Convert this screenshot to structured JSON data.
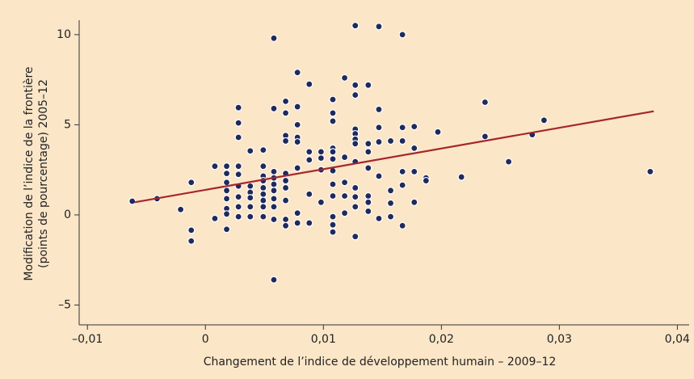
{
  "chart_data": {
    "type": "scatter",
    "xlabel": "Changement de l’indice de développement humain – 2009–12",
    "ylabel": [
      "Modification de l’indice de la frontière",
      "(points de pourcentage) 2005–12"
    ],
    "xlim": [
      -0.0107,
      0.041
    ],
    "ylim": [
      -6.1,
      10.8
    ],
    "xticks": [
      {
        "value": -0.01,
        "label": "–0,01"
      },
      0,
      {
        "value": 0.01,
        "label": "0,01"
      },
      {
        "value": 0.02,
        "label": "0,02"
      },
      {
        "value": 0.03,
        "label": "0,03"
      },
      {
        "value": 0.04,
        "label": "0,04"
      }
    ],
    "yticks": [
      {
        "value": -5,
        "label": "–5"
      },
      0,
      5,
      10
    ],
    "color": "#1f2a5c",
    "x": [
      -0.0062,
      -0.0041,
      -0.0021,
      -0.0012,
      -0.0012,
      -0.0012,
      0.0008,
      0.0008,
      0.0018,
      0.0018,
      0.0018,
      0.0018,
      0.0018,
      0.0018,
      0.0018,
      0.0018,
      0.0028,
      0.0028,
      0.0028,
      0.0028,
      0.0028,
      0.0028,
      0.0028,
      0.0028,
      0.0028,
      0.0038,
      0.0038,
      0.0038,
      0.0038,
      0.0038,
      0.0038,
      0.0049,
      0.0049,
      0.0049,
      0.0049,
      0.0049,
      0.0049,
      0.0049,
      0.0049,
      0.0049,
      0.0058,
      0.0058,
      0.0058,
      0.0058,
      0.0058,
      0.0058,
      0.0058,
      0.0058,
      0.0058,
      0.0058,
      0.0068,
      0.0068,
      0.0068,
      0.0068,
      0.0068,
      0.0068,
      0.0068,
      0.0068,
      0.0068,
      0.0068,
      0.0078,
      0.0078,
      0.0078,
      0.0078,
      0.0078,
      0.0078,
      0.0078,
      0.0078,
      0.0088,
      0.0088,
      0.0088,
      0.0088,
      0.0088,
      0.0098,
      0.0098,
      0.0098,
      0.0098,
      0.0108,
      0.0108,
      0.0108,
      0.0108,
      0.0108,
      0.0108,
      0.0108,
      0.0108,
      0.0108,
      0.0108,
      0.0108,
      0.0108,
      0.0118,
      0.0118,
      0.0118,
      0.0118,
      0.0118,
      0.0127,
      0.0127,
      0.0127,
      0.0127,
      0.0127,
      0.0127,
      0.0127,
      0.0127,
      0.0127,
      0.0127,
      0.0127,
      0.0127,
      0.0138,
      0.0138,
      0.0138,
      0.0138,
      0.0138,
      0.0138,
      0.0138,
      0.0147,
      0.0147,
      0.0147,
      0.0147,
      0.0147,
      0.0147,
      0.0157,
      0.0157,
      0.0157,
      0.0157,
      0.0167,
      0.0167,
      0.0167,
      0.0167,
      0.0167,
      0.0167,
      0.0177,
      0.0177,
      0.0177,
      0.0177,
      0.0187,
      0.0187,
      0.0197,
      0.0217,
      0.0237,
      0.0237,
      0.0257,
      0.0277,
      0.0287,
      0.0377
    ],
    "y": [
      0.76,
      0.9,
      0.3,
      1.8,
      -0.85,
      -1.45,
      2.7,
      -0.2,
      2.7,
      2.3,
      1.8,
      1.35,
      0.9,
      0.35,
      0.05,
      -0.8,
      5.95,
      5.1,
      4.3,
      2.7,
      2.25,
      1.6,
      1.0,
      0.45,
      -0.1,
      3.55,
      1.6,
      1.25,
      0.95,
      0.45,
      -0.1,
      3.6,
      2.7,
      2.15,
      1.9,
      1.5,
      1.15,
      0.8,
      0.45,
      -0.1,
      9.8,
      5.9,
      2.4,
      2.05,
      1.7,
      1.35,
      0.9,
      0.45,
      -0.25,
      -3.6,
      6.3,
      5.65,
      4.4,
      4.1,
      2.3,
      1.9,
      1.5,
      0.8,
      -0.25,
      -0.6,
      7.9,
      6.0,
      5.0,
      4.3,
      4.05,
      2.6,
      0.1,
      -0.45,
      7.25,
      3.5,
      3.05,
      1.15,
      -0.45,
      3.5,
      3.15,
      2.5,
      0.7,
      6.4,
      5.65,
      5.2,
      3.7,
      3.5,
      3.1,
      2.45,
      1.7,
      1.05,
      -0.1,
      -0.55,
      -0.95,
      7.6,
      3.2,
      1.8,
      1.05,
      0.1,
      10.5,
      7.2,
      6.65,
      4.75,
      4.5,
      4.2,
      3.95,
      2.95,
      1.5,
      1.0,
      0.45,
      -1.2,
      7.2,
      3.95,
      3.5,
      2.6,
      1.05,
      0.7,
      0.2,
      10.45,
      5.85,
      4.85,
      4.05,
      2.15,
      -0.2,
      4.1,
      1.35,
      0.65,
      -0.1,
      10.0,
      4.85,
      4.1,
      2.4,
      1.65,
      -0.6,
      4.9,
      3.7,
      2.4,
      0.7,
      2.05,
      1.9,
      4.6,
      2.1,
      6.25,
      4.35,
      2.95,
      4.45,
      5.25,
      2.4
    ],
    "trend_line": {
      "color": "#a6262a",
      "x": [
        -0.006,
        0.038
      ],
      "y": [
        0.7,
        5.75
      ]
    }
  }
}
